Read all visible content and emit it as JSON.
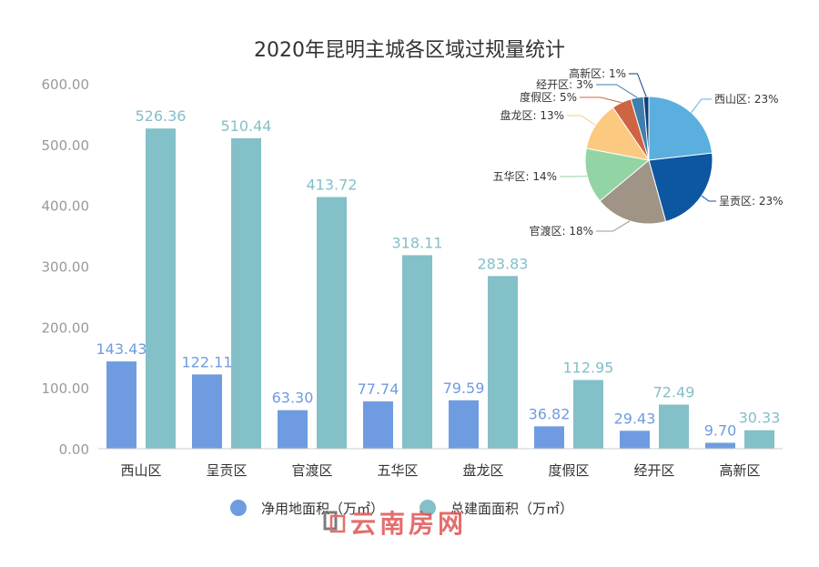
{
  "chart_data": [
    {
      "type": "bar",
      "title": "2020年昆明主城各区域过规量统计",
      "categories": [
        "西山区",
        "呈贡区",
        "官渡区",
        "五华区",
        "盘龙区",
        "度假区",
        "经开区",
        "高新区"
      ],
      "series": [
        {
          "name": "净用地面积（万㎡）",
          "color": "#6f9ce0",
          "values": [
            143.43,
            122.11,
            63.3,
            77.74,
            79.59,
            36.82,
            29.43,
            9.7
          ]
        },
        {
          "name": "总建面面积（万㎡）",
          "color": "#83c0c8",
          "values": [
            526.36,
            510.44,
            413.72,
            318.11,
            283.83,
            112.95,
            72.49,
            30.33
          ]
        }
      ],
      "ylim": [
        0,
        600
      ],
      "yticks": [
        "0.00",
        "100.00",
        "200.00",
        "300.00",
        "400.00",
        "500.00",
        "600.00"
      ],
      "grid": false,
      "legend": "bottom"
    },
    {
      "type": "pie",
      "slices": [
        {
          "label": "西山区: 23%",
          "value": 526.36,
          "color": "#5aafdf"
        },
        {
          "label": "呈贡区: 23%",
          "value": 510.44,
          "color": "#0d56a0"
        },
        {
          "label": "官渡区: 18%",
          "value": 413.72,
          "color": "#a09486"
        },
        {
          "label": "五华区: 14%",
          "value": 318.11,
          "color": "#93d4a4"
        },
        {
          "label": "盘龙区: 13%",
          "value": 283.83,
          "color": "#fbc97f"
        },
        {
          "label": "度假区: 5%",
          "value": 112.95,
          "color": "#cf6442"
        },
        {
          "label": "经开区: 3%",
          "value": 72.49,
          "color": "#3f7fae"
        },
        {
          "label": "高新区: 1%",
          "value": 30.33,
          "color": "#0b3f7a"
        }
      ]
    }
  ],
  "watermark": "云南房网"
}
